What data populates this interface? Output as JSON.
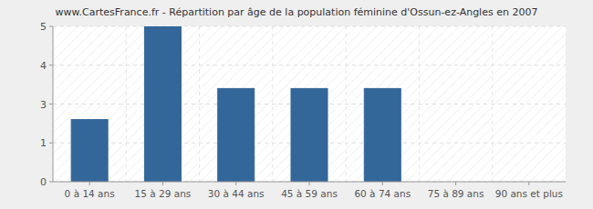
{
  "chart_data": {
    "type": "bar",
    "title": "www.CartesFrance.fr - Répartition par âge de la population féminine d'Ossun-ez-Angles en 2007",
    "categories": [
      "0 à 14 ans",
      "15 à 29 ans",
      "30 à 44 ans",
      "45 à 59 ans",
      "60 à 74 ans",
      "75 à 89 ans",
      "90 ans et plus"
    ],
    "values": [
      2,
      5,
      3,
      3,
      3,
      0,
      0
    ],
    "color": "#336699",
    "ylim": [
      0,
      5
    ],
    "yticks": [
      0,
      {
        "value": 1.25,
        "label": "1"
      },
      {
        "value": 2.5,
        "label": "3"
      },
      {
        "value": 3.75,
        "label": "4"
      },
      5
    ],
    "grid": true
  }
}
